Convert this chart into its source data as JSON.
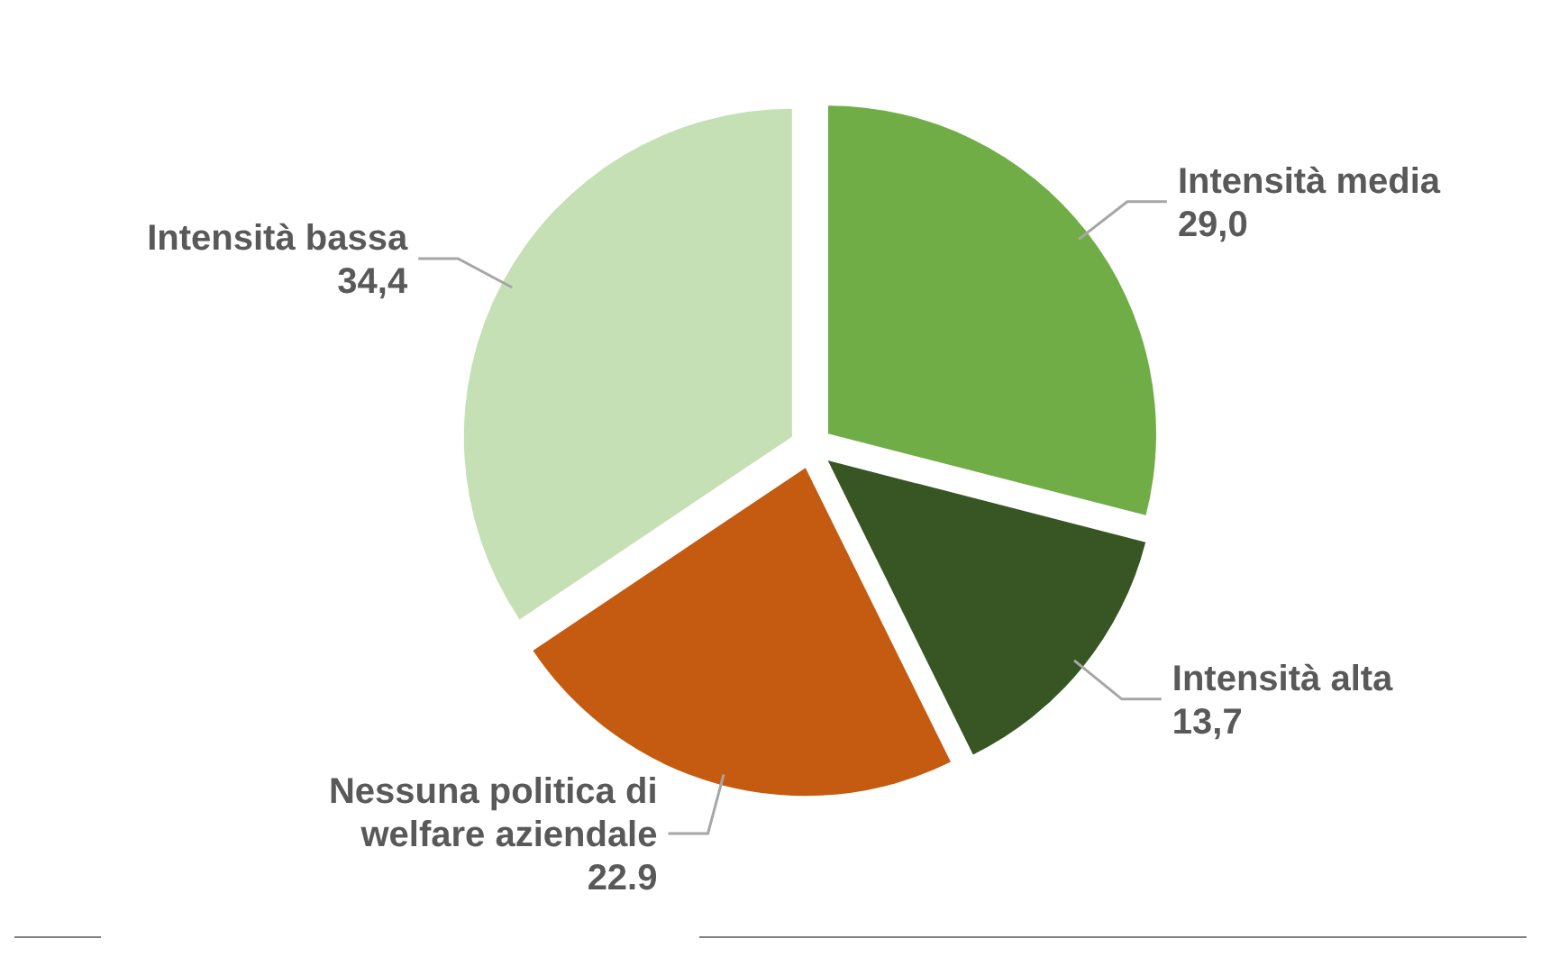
{
  "chart_data": {
    "type": "pie",
    "categories": [
      "Intensità media",
      "Intensità alta",
      "Nessuna politica di welfare aziendale",
      "Intensità bassa"
    ],
    "values": [
      29.0,
      13.7,
      22.9,
      34.4
    ],
    "value_labels": [
      "29,0",
      "13,7",
      "22.9",
      "34,4"
    ],
    "colors": [
      "#70ad47",
      "#375623",
      "#c55a11",
      "#c5e0b4"
    ]
  }
}
